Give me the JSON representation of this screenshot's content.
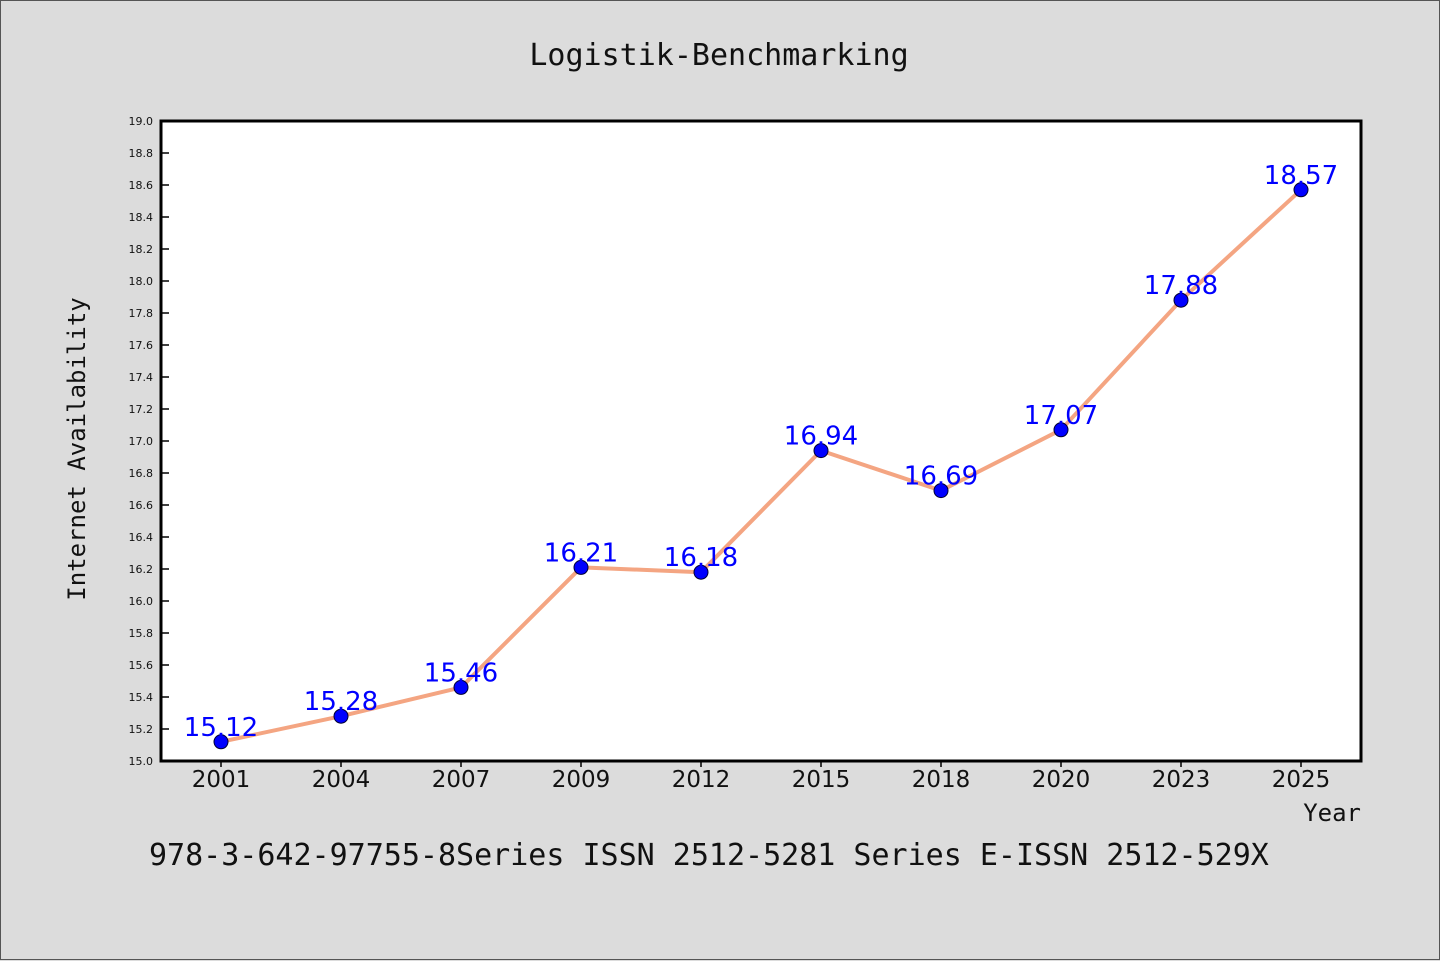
{
  "chart_data": {
    "type": "line",
    "title": "Logistik-Benchmarking",
    "xlabel": "Year",
    "ylabel": "Internet Availability",
    "categories": [
      "2001",
      "2004",
      "2007",
      "2009",
      "2012",
      "2015",
      "2018",
      "2020",
      "2023",
      "2025"
    ],
    "series": [
      {
        "values": [
          15.12,
          15.28,
          15.46,
          16.21,
          16.18,
          16.94,
          16.69,
          17.07,
          17.88,
          18.57
        ]
      }
    ],
    "data_labels": [
      "15.12",
      "15.28",
      "15.46",
      "16.21",
      "16.18",
      "16.94",
      "16.69",
      "17.07",
      "17.88",
      "18.57"
    ],
    "ylim": [
      15.0,
      19.0
    ],
    "yticks": [
      "15.0",
      "15.2",
      "15.4",
      "15.6",
      "15.8",
      "16.0",
      "16.2",
      "16.4",
      "16.6",
      "16.8",
      "17.0",
      "17.2",
      "17.4",
      "17.6",
      "17.8",
      "18.0",
      "18.2",
      "18.4",
      "18.6",
      "18.8",
      "19.0"
    ],
    "grid": false,
    "line_color": "#f4a582",
    "marker_color": "#0000ff",
    "label_color": "#0000ff"
  },
  "footer": {
    "text": "978-3-642-97755-8Series ISSN 2512-5281 Series E-ISSN 2512-529X"
  }
}
